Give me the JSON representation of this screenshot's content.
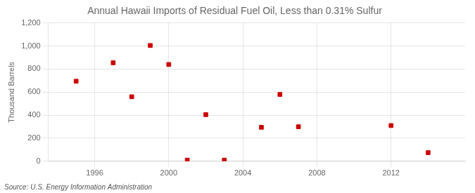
{
  "chart_data": {
    "type": "scatter",
    "title": "Annual Hawaii Imports of Residual Fuel Oil, Less than 0.31% Sulfur",
    "ylabel": "Thousand Barrels",
    "source": "Source: U.S. Energy Information Administration",
    "x": [
      1995,
      1997,
      1998,
      1999,
      2000,
      2001,
      2002,
      2003,
      2005,
      2006,
      2007,
      2012,
      2014
    ],
    "values": [
      695,
      855,
      560,
      1005,
      840,
      10,
      405,
      10,
      295,
      580,
      300,
      310,
      75
    ],
    "color": "#cc0000",
    "marker": "square",
    "xlim": [
      1993.5,
      2016
    ],
    "xticks": [
      1996,
      2000,
      2004,
      2008,
      2012
    ],
    "ylim": [
      0,
      1200
    ],
    "yticks": [
      0,
      200,
      400,
      600,
      800,
      {
        "value": 1000,
        "label": "1,000"
      },
      {
        "value": 1200,
        "label": "1,200"
      }
    ],
    "grid": true
  }
}
